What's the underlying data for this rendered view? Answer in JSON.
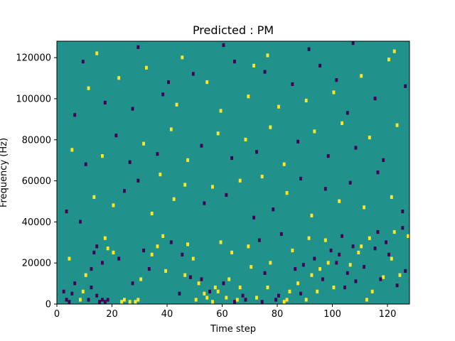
{
  "chart_data": {
    "type": "heatmap",
    "title": "Predicted : PM",
    "xlabel": "Time step",
    "ylabel": "Frequency (Hz)",
    "xlim": [
      0,
      128
    ],
    "ylim": [
      0,
      128000
    ],
    "x_ticks": [
      0,
      20,
      40,
      60,
      80,
      100,
      120
    ],
    "x_tick_labels": [
      "0",
      "20",
      "40",
      "60",
      "80",
      "100",
      "120"
    ],
    "y_ticks": [
      0,
      20000,
      40000,
      60000,
      80000,
      100000,
      120000
    ],
    "y_tick_labels": [
      "0",
      "20000",
      "40000",
      "60000",
      "80000",
      "100000",
      "120000"
    ],
    "colormap": "viridis",
    "value_colors": {
      "low": "#440154",
      "mid": "#21918c",
      "high": "#fde725"
    },
    "background_value": "mid",
    "time_bins": 128,
    "freq_bins": 128,
    "freq_bin_width_hz": 1000,
    "cells": [
      {
        "t": 2,
        "f": 6,
        "v": "low"
      },
      {
        "t": 3,
        "f": 2,
        "v": "low"
      },
      {
        "t": 4,
        "f": 22,
        "v": "yellow"
      },
      {
        "t": 5,
        "f": 5,
        "v": "low"
      },
      {
        "t": 6,
        "f": 10,
        "v": "low"
      },
      {
        "t": 4,
        "f": 1,
        "v": "low"
      },
      {
        "t": 8,
        "f": 2,
        "v": "yellow"
      },
      {
        "t": 9,
        "f": 6,
        "v": "yellow"
      },
      {
        "t": 10,
        "f": 14,
        "v": "yellow"
      },
      {
        "t": 11,
        "f": 2,
        "v": "low"
      },
      {
        "t": 12,
        "f": 17,
        "v": "low"
      },
      {
        "t": 14,
        "f": 4,
        "v": "low"
      },
      {
        "t": 15,
        "f": 1,
        "v": "low"
      },
      {
        "t": 16,
        "f": 2,
        "v": "low"
      },
      {
        "t": 17,
        "f": 1,
        "v": "low"
      },
      {
        "t": 18,
        "f": 2,
        "v": "low"
      },
      {
        "t": 13,
        "f": 25,
        "v": "low"
      },
      {
        "t": 17,
        "f": 32,
        "v": "yellow"
      },
      {
        "t": 23,
        "f": 1,
        "v": "yellow"
      },
      {
        "t": 24,
        "f": 2,
        "v": "yellow"
      },
      {
        "t": 26,
        "f": 1,
        "v": "yellow"
      },
      {
        "t": 28,
        "f": 1,
        "v": "yellow"
      },
      {
        "t": 29,
        "f": 2,
        "v": "yellow"
      },
      {
        "t": 22,
        "f": 22,
        "v": "low"
      },
      {
        "t": 20,
        "f": 25,
        "v": "yellow"
      },
      {
        "t": 31,
        "f": 26,
        "v": "low"
      },
      {
        "t": 34,
        "f": 24,
        "v": "yellow"
      },
      {
        "t": 36,
        "f": 28,
        "v": "yellow"
      },
      {
        "t": 38,
        "f": 33,
        "v": "yellow"
      },
      {
        "t": 41,
        "f": 30,
        "v": "low"
      },
      {
        "t": 45,
        "f": 24,
        "v": "low"
      },
      {
        "t": 47,
        "f": 29,
        "v": "yellow"
      },
      {
        "t": 48,
        "f": 13,
        "v": "low"
      },
      {
        "t": 50,
        "f": 2,
        "v": "yellow"
      },
      {
        "t": 51,
        "f": 10,
        "v": "yellow"
      },
      {
        "t": 52,
        "f": 12,
        "v": "low"
      },
      {
        "t": 53,
        "f": 5,
        "v": "yellow"
      },
      {
        "t": 54,
        "f": 3,
        "v": "yellow"
      },
      {
        "t": 55,
        "f": 6,
        "v": "low"
      },
      {
        "t": 56,
        "f": 1,
        "v": "yellow"
      },
      {
        "t": 57,
        "f": 8,
        "v": "yellow"
      },
      {
        "t": 58,
        "f": 6,
        "v": "yellow"
      },
      {
        "t": 60,
        "f": 10,
        "v": "low"
      },
      {
        "t": 61,
        "f": 3,
        "v": "yellow"
      },
      {
        "t": 62,
        "f": 12,
        "v": "yellow"
      },
      {
        "t": 64,
        "f": 1,
        "v": "low"
      },
      {
        "t": 65,
        "f": 2,
        "v": "yellow"
      },
      {
        "t": 66,
        "f": 8,
        "v": "yellow"
      },
      {
        "t": 67,
        "f": 4,
        "v": "low"
      },
      {
        "t": 68,
        "f": 2,
        "v": "low"
      },
      {
        "t": 70,
        "f": 18,
        "v": "yellow"
      },
      {
        "t": 72,
        "f": 3,
        "v": "yellow"
      },
      {
        "t": 74,
        "f": 1,
        "v": "low"
      },
      {
        "t": 75,
        "f": 15,
        "v": "low"
      },
      {
        "t": 77,
        "f": 20,
        "v": "yellow"
      },
      {
        "t": 79,
        "f": 2,
        "v": "low"
      },
      {
        "t": 80,
        "f": 4,
        "v": "low"
      },
      {
        "t": 82,
        "f": 1,
        "v": "yellow"
      },
      {
        "t": 83,
        "f": 2,
        "v": "yellow"
      },
      {
        "t": 84,
        "f": 6,
        "v": "yellow"
      },
      {
        "t": 86,
        "f": 17,
        "v": "low"
      },
      {
        "t": 87,
        "f": 10,
        "v": "yellow"
      },
      {
        "t": 88,
        "f": 5,
        "v": "low"
      },
      {
        "t": 90,
        "f": 2,
        "v": "yellow"
      },
      {
        "t": 92,
        "f": 14,
        "v": "yellow"
      },
      {
        "t": 94,
        "f": 6,
        "v": "yellow"
      },
      {
        "t": 96,
        "f": 12,
        "v": "low"
      },
      {
        "t": 98,
        "f": 20,
        "v": "yellow"
      },
      {
        "t": 100,
        "f": 8,
        "v": "yellow"
      },
      {
        "t": 102,
        "f": 24,
        "v": "low"
      },
      {
        "t": 104,
        "f": 8,
        "v": "low"
      },
      {
        "t": 106,
        "f": 19,
        "v": "yellow"
      },
      {
        "t": 108,
        "f": 11,
        "v": "low"
      },
      {
        "t": 110,
        "f": 28,
        "v": "yellow"
      },
      {
        "t": 112,
        "f": 2,
        "v": "yellow"
      },
      {
        "t": 114,
        "f": 6,
        "v": "yellow"
      },
      {
        "t": 116,
        "f": 35,
        "v": "low"
      },
      {
        "t": 118,
        "f": 13,
        "v": "yellow"
      },
      {
        "t": 120,
        "f": 24,
        "v": "low"
      },
      {
        "t": 122,
        "f": 35,
        "v": "yellow"
      },
      {
        "t": 124,
        "f": 14,
        "v": "yellow"
      },
      {
        "t": 126,
        "f": 16,
        "v": "low"
      },
      {
        "t": 12,
        "f": 8,
        "v": "low"
      },
      {
        "t": 14,
        "f": 28,
        "v": "low"
      },
      {
        "t": 16,
        "f": 20,
        "v": "low"
      },
      {
        "t": 18,
        "f": 27,
        "v": "yellow"
      },
      {
        "t": 27,
        "f": 10,
        "v": "low"
      },
      {
        "t": 30,
        "f": 12,
        "v": "yellow"
      },
      {
        "t": 33,
        "f": 17,
        "v": "low"
      },
      {
        "t": 39,
        "f": 16,
        "v": "yellow"
      },
      {
        "t": 44,
        "f": 5,
        "v": "low"
      },
      {
        "t": 46,
        "f": 14,
        "v": "yellow"
      },
      {
        "t": 49,
        "f": 22,
        "v": "yellow"
      },
      {
        "t": 59,
        "f": 30,
        "v": "yellow"
      },
      {
        "t": 63,
        "f": 25,
        "v": "yellow"
      },
      {
        "t": 69,
        "f": 28,
        "v": "yellow"
      },
      {
        "t": 73,
        "f": 31,
        "v": "low"
      },
      {
        "t": 76,
        "f": 8,
        "v": "yellow"
      },
      {
        "t": 81,
        "f": 34,
        "v": "low"
      },
      {
        "t": 85,
        "f": 26,
        "v": "yellow"
      },
      {
        "t": 89,
        "f": 19,
        "v": "low"
      },
      {
        "t": 91,
        "f": 32,
        "v": "yellow"
      },
      {
        "t": 93,
        "f": 22,
        "v": "low"
      },
      {
        "t": 95,
        "f": 17,
        "v": "yellow"
      },
      {
        "t": 97,
        "f": 31,
        "v": "yellow"
      },
      {
        "t": 99,
        "f": 26,
        "v": "low"
      },
      {
        "t": 101,
        "f": 20,
        "v": "low"
      },
      {
        "t": 103,
        "f": 33,
        "v": "low"
      },
      {
        "t": 105,
        "f": 15,
        "v": "low"
      },
      {
        "t": 107,
        "f": 28,
        "v": "low"
      },
      {
        "t": 109,
        "f": 25,
        "v": "yellow"
      },
      {
        "t": 111,
        "f": 18,
        "v": "low"
      },
      {
        "t": 113,
        "f": 32,
        "v": "yellow"
      },
      {
        "t": 115,
        "f": 27,
        "v": "low"
      },
      {
        "t": 117,
        "f": 12,
        "v": "low"
      },
      {
        "t": 119,
        "f": 30,
        "v": "low"
      },
      {
        "t": 121,
        "f": 22,
        "v": "yellow"
      },
      {
        "t": 123,
        "f": 9,
        "v": "low"
      },
      {
        "t": 125,
        "f": 37,
        "v": "low"
      },
      {
        "t": 127,
        "f": 33,
        "v": "yellow"
      },
      {
        "t": 3,
        "f": 45,
        "v": "low"
      },
      {
        "t": 8,
        "f": 40,
        "v": "low"
      },
      {
        "t": 13,
        "f": 52,
        "v": "yellow"
      },
      {
        "t": 20,
        "f": 48,
        "v": "yellow"
      },
      {
        "t": 24,
        "f": 55,
        "v": "low"
      },
      {
        "t": 29,
        "f": 60,
        "v": "low"
      },
      {
        "t": 34,
        "f": 44,
        "v": "yellow"
      },
      {
        "t": 37,
        "f": 63,
        "v": "yellow"
      },
      {
        "t": 42,
        "f": 51,
        "v": "yellow"
      },
      {
        "t": 46,
        "f": 58,
        "v": "yellow"
      },
      {
        "t": 53,
        "f": 49,
        "v": "low"
      },
      {
        "t": 56,
        "f": 57,
        "v": "yellow"
      },
      {
        "t": 61,
        "f": 53,
        "v": "low"
      },
      {
        "t": 66,
        "f": 60,
        "v": "yellow"
      },
      {
        "t": 71,
        "f": 42,
        "v": "low"
      },
      {
        "t": 74,
        "f": 62,
        "v": "yellow"
      },
      {
        "t": 78,
        "f": 46,
        "v": "low"
      },
      {
        "t": 83,
        "f": 54,
        "v": "yellow"
      },
      {
        "t": 88,
        "f": 61,
        "v": "low"
      },
      {
        "t": 92,
        "f": 43,
        "v": "yellow"
      },
      {
        "t": 97,
        "f": 56,
        "v": "low"
      },
      {
        "t": 102,
        "f": 50,
        "v": "yellow"
      },
      {
        "t": 106,
        "f": 59,
        "v": "low"
      },
      {
        "t": 111,
        "f": 47,
        "v": "yellow"
      },
      {
        "t": 116,
        "f": 64,
        "v": "low"
      },
      {
        "t": 121,
        "f": 52,
        "v": "yellow"
      },
      {
        "t": 125,
        "f": 45,
        "v": "low"
      },
      {
        "t": 5,
        "f": 75,
        "v": "yellow"
      },
      {
        "t": 10,
        "f": 68,
        "v": "low"
      },
      {
        "t": 16,
        "f": 72,
        "v": "yellow"
      },
      {
        "t": 21,
        "f": 82,
        "v": "low"
      },
      {
        "t": 26,
        "f": 69,
        "v": "low"
      },
      {
        "t": 31,
        "f": 78,
        "v": "yellow"
      },
      {
        "t": 36,
        "f": 73,
        "v": "low"
      },
      {
        "t": 41,
        "f": 85,
        "v": "yellow"
      },
      {
        "t": 47,
        "f": 70,
        "v": "yellow"
      },
      {
        "t": 52,
        "f": 77,
        "v": "low"
      },
      {
        "t": 58,
        "f": 83,
        "v": "yellow"
      },
      {
        "t": 63,
        "f": 71,
        "v": "low"
      },
      {
        "t": 68,
        "f": 80,
        "v": "yellow"
      },
      {
        "t": 72,
        "f": 74,
        "v": "low"
      },
      {
        "t": 77,
        "f": 86,
        "v": "yellow"
      },
      {
        "t": 82,
        "f": 68,
        "v": "yellow"
      },
      {
        "t": 87,
        "f": 79,
        "v": "low"
      },
      {
        "t": 93,
        "f": 84,
        "v": "yellow"
      },
      {
        "t": 98,
        "f": 72,
        "v": "low"
      },
      {
        "t": 103,
        "f": 88,
        "v": "yellow"
      },
      {
        "t": 108,
        "f": 76,
        "v": "low"
      },
      {
        "t": 113,
        "f": 81,
        "v": "yellow"
      },
      {
        "t": 118,
        "f": 70,
        "v": "low"
      },
      {
        "t": 123,
        "f": 87,
        "v": "yellow"
      },
      {
        "t": 6,
        "f": 92,
        "v": "low"
      },
      {
        "t": 11,
        "f": 105,
        "v": "yellow"
      },
      {
        "t": 17,
        "f": 98,
        "v": "low"
      },
      {
        "t": 22,
        "f": 110,
        "v": "yellow"
      },
      {
        "t": 27,
        "f": 95,
        "v": "low"
      },
      {
        "t": 32,
        "f": 115,
        "v": "yellow"
      },
      {
        "t": 38,
        "f": 102,
        "v": "low"
      },
      {
        "t": 43,
        "f": 97,
        "v": "yellow"
      },
      {
        "t": 49,
        "f": 112,
        "v": "low"
      },
      {
        "t": 54,
        "f": 108,
        "v": "yellow"
      },
      {
        "t": 59,
        "f": 94,
        "v": "yellow"
      },
      {
        "t": 64,
        "f": 118,
        "v": "low"
      },
      {
        "t": 69,
        "f": 101,
        "v": "yellow"
      },
      {
        "t": 75,
        "f": 113,
        "v": "low"
      },
      {
        "t": 80,
        "f": 96,
        "v": "yellow"
      },
      {
        "t": 85,
        "f": 107,
        "v": "low"
      },
      {
        "t": 90,
        "f": 99,
        "v": "yellow"
      },
      {
        "t": 95,
        "f": 116,
        "v": "low"
      },
      {
        "t": 100,
        "f": 103,
        "v": "yellow"
      },
      {
        "t": 105,
        "f": 93,
        "v": "low"
      },
      {
        "t": 110,
        "f": 111,
        "v": "yellow"
      },
      {
        "t": 115,
        "f": 100,
        "v": "low"
      },
      {
        "t": 120,
        "f": 119,
        "v": "yellow"
      },
      {
        "t": 126,
        "f": 106,
        "v": "low"
      },
      {
        "t": 14,
        "f": 122,
        "v": "yellow"
      },
      {
        "t": 29,
        "f": 125,
        "v": "low"
      },
      {
        "t": 45,
        "f": 120,
        "v": "yellow"
      },
      {
        "t": 60,
        "f": 126,
        "v": "low"
      },
      {
        "t": 76,
        "f": 121,
        "v": "yellow"
      },
      {
        "t": 91,
        "f": 124,
        "v": "low"
      },
      {
        "t": 107,
        "f": 127,
        "v": "low"
      },
      {
        "t": 122,
        "f": 123,
        "v": "yellow"
      },
      {
        "t": 9,
        "f": 118,
        "v": "low"
      },
      {
        "t": 40,
        "f": 108,
        "v": "low"
      },
      {
        "t": 71,
        "f": 116,
        "v": "yellow"
      },
      {
        "t": 101,
        "f": 109,
        "v": "low"
      }
    ]
  }
}
